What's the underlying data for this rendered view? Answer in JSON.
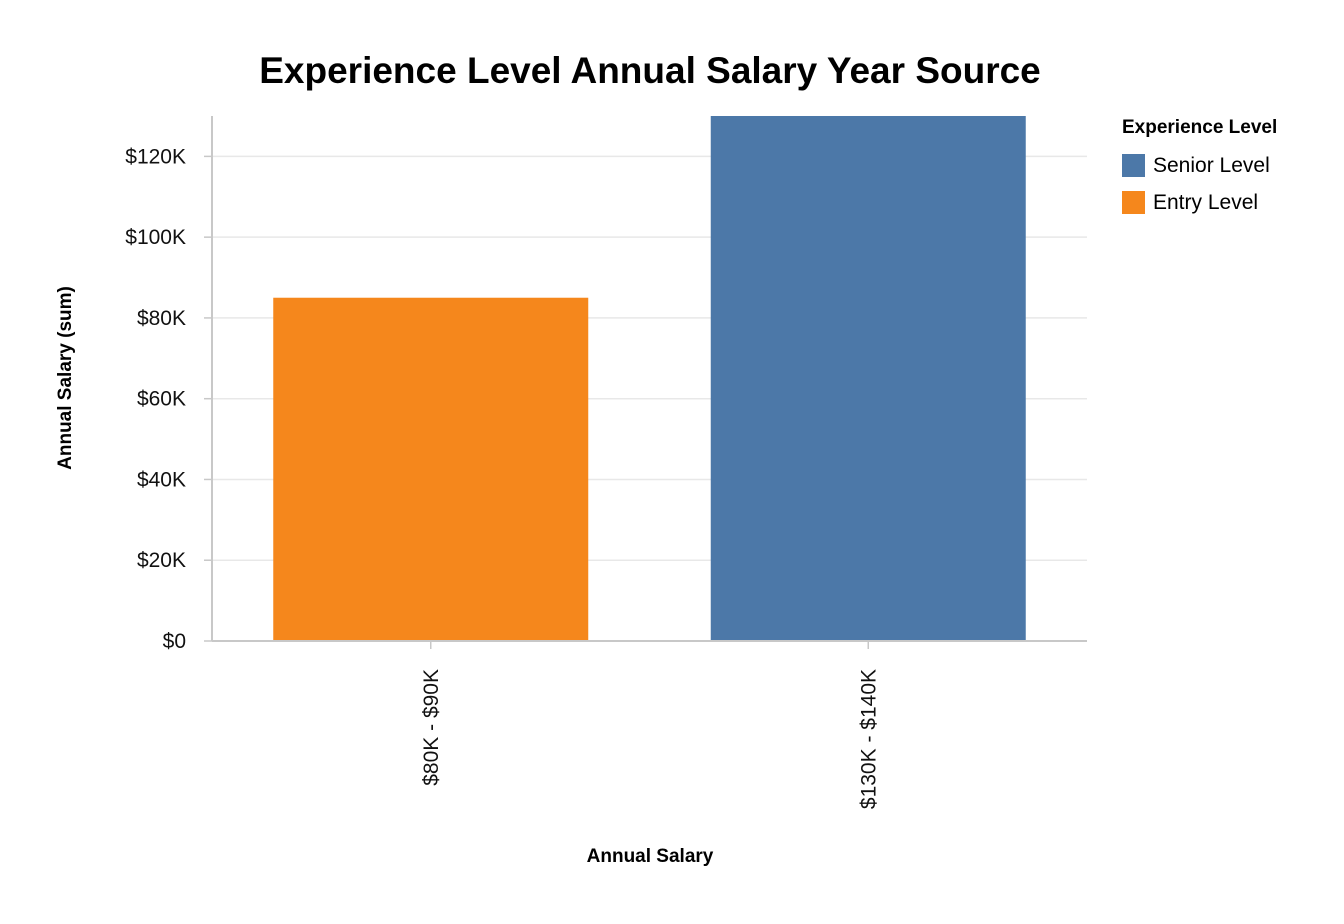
{
  "chart_data": {
    "type": "bar",
    "title": "Experience Level Annual Salary Year Source",
    "xlabel": "Annual Salary",
    "ylabel": "Annual Salary (sum)",
    "categories": [
      "$80K - $90K",
      "$130K - $140K"
    ],
    "series": [
      {
        "name": "Entry Level",
        "color": "#f5871c",
        "values": [
          85000,
          null
        ]
      },
      {
        "name": "Senior Level",
        "color": "#4c78a8",
        "values": [
          null,
          130000
        ]
      }
    ],
    "ylim": [
      0,
      130000
    ],
    "yticks": [
      0,
      20000,
      40000,
      60000,
      80000,
      100000,
      120000
    ],
    "ytick_labels": [
      "$0",
      "$20K",
      "$40K",
      "$60K",
      "$80K",
      "$100K",
      "$120K"
    ],
    "grid": true,
    "legend": {
      "title": "Experience Level",
      "placement": "right",
      "items": [
        {
          "label": "Senior Level",
          "color": "#4c78a8"
        },
        {
          "label": "Entry Level",
          "color": "#f5871c"
        }
      ]
    }
  }
}
